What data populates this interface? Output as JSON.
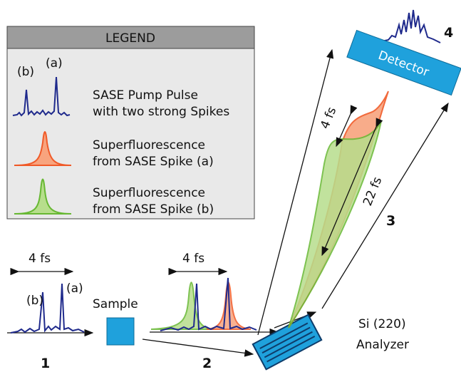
{
  "legend": {
    "title": "LEGEND",
    "items": [
      {
        "spike_labels": [
          "(b)",
          "(a)"
        ],
        "lines": [
          "SASE Pump Pulse",
          "with two strong Spikes"
        ]
      },
      {
        "lines": [
          "Superfluorescence",
          "from SASE Spike (a)"
        ]
      },
      {
        "lines": [
          "Superfluorescence",
          "from SASE Spike (b)"
        ]
      }
    ]
  },
  "steps": [
    {
      "number": "1",
      "width_label": "4 fs",
      "spike_labels": [
        "(b)",
        "(a)"
      ]
    },
    {
      "number": "2",
      "width_label": "4 fs"
    },
    {
      "number": "3",
      "width_labels": [
        "4 fs",
        "22 fs"
      ]
    },
    {
      "number": "4"
    }
  ],
  "sample": "Sample",
  "analyzer": [
    "Si (220)",
    "Analyzer"
  ],
  "detector": "Detector"
}
